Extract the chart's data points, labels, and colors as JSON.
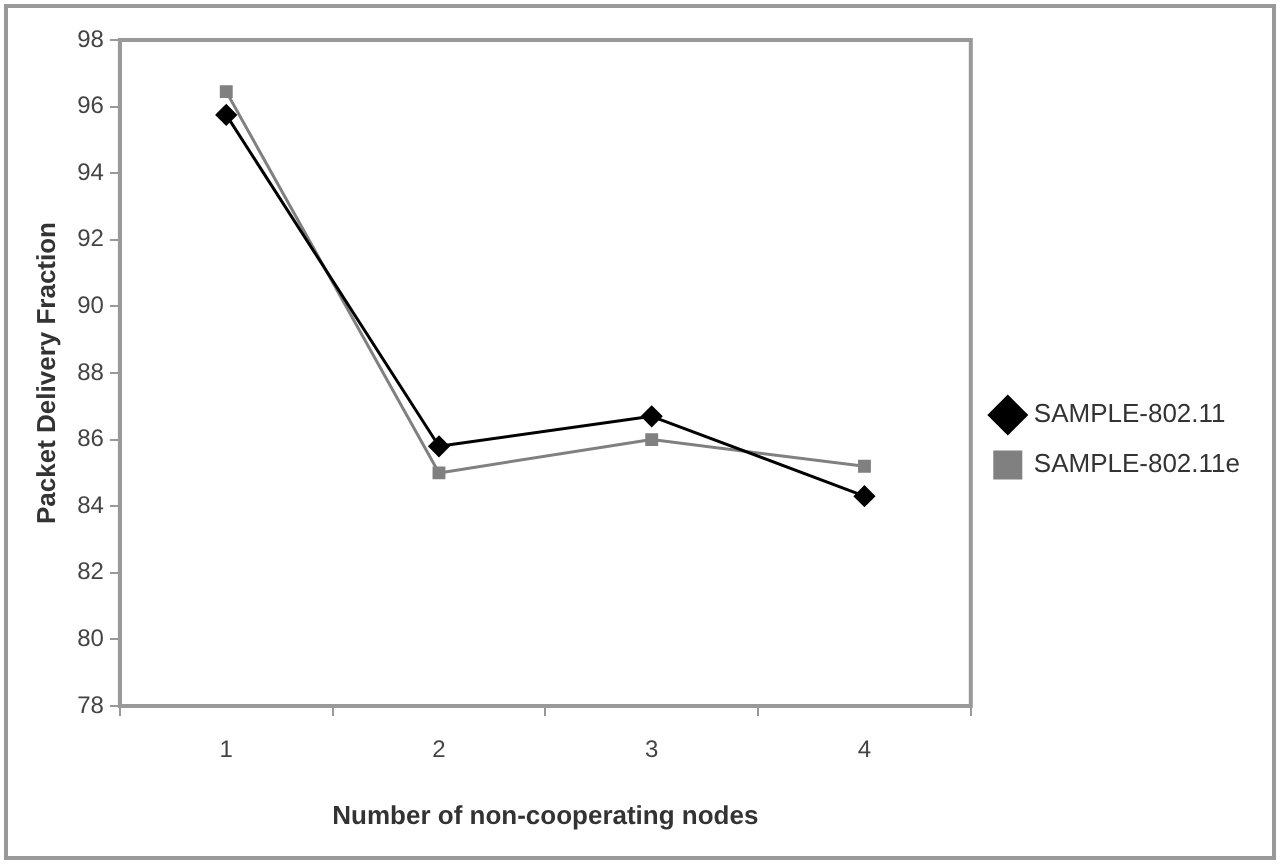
{
  "chart_data": {
    "type": "line",
    "xlabel": "Number of non-cooperating nodes",
    "ylabel": "Packet Delivery Fraction",
    "categories": [
      "1",
      "2",
      "3",
      "4"
    ],
    "series": [
      {
        "name": "SAMPLE-802.11",
        "color": "#000000",
        "marker": "diamond",
        "values": [
          95.75,
          85.8,
          86.7,
          84.3
        ]
      },
      {
        "name": "SAMPLE-802.11e",
        "color": "#808080",
        "marker": "square",
        "values": [
          96.45,
          85.0,
          86.0,
          85.2
        ]
      }
    ],
    "ylim": [
      78,
      98
    ],
    "yticks": [
      78,
      80,
      82,
      84,
      86,
      88,
      90,
      92,
      94,
      96,
      98
    ],
    "grid": false,
    "legend": "right"
  }
}
